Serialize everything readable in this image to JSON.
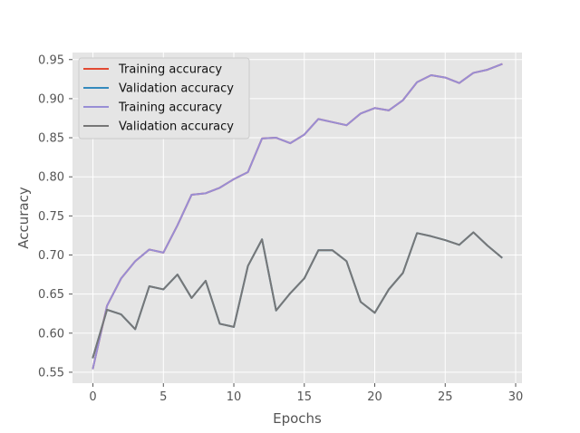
{
  "chart_data": {
    "type": "line",
    "title": "",
    "xlabel": "Epochs",
    "ylabel": "Accuracy",
    "xlim": [
      -1.45,
      30.45
    ],
    "ylim": [
      0.536,
      0.959
    ],
    "xticks": [
      0,
      5,
      10,
      15,
      20,
      25,
      30
    ],
    "yticks": [
      0.55,
      0.6,
      0.65,
      0.7,
      0.75,
      0.8,
      0.85,
      0.9,
      0.95
    ],
    "xtick_labels": [
      "0",
      "5",
      "10",
      "15",
      "20",
      "25",
      "30"
    ],
    "ytick_labels": [
      "0.55",
      "0.60",
      "0.65",
      "0.70",
      "0.75",
      "0.80",
      "0.85",
      "0.90",
      "0.95"
    ],
    "grid": true,
    "legend_position": "upper-left",
    "x": [
      0,
      1,
      2,
      3,
      4,
      5,
      6,
      7,
      8,
      9,
      10,
      11,
      12,
      13,
      14,
      15,
      16,
      17,
      18,
      19,
      20,
      21,
      22,
      23,
      24,
      25,
      26,
      27,
      28,
      29
    ],
    "series": [
      {
        "name": "Training accuracy",
        "color": "#e24a33",
        "values": [
          0.555,
          0.635,
          0.67,
          0.692,
          0.707,
          0.703,
          0.738,
          0.777,
          0.779,
          0.786,
          0.797,
          0.806,
          0.849,
          0.85,
          0.843,
          0.854,
          0.874,
          0.87,
          0.866,
          0.881,
          0.888,
          0.885,
          0.898,
          0.921,
          0.93,
          0.927,
          0.92,
          0.933,
          0.937,
          0.944
        ]
      },
      {
        "name": "Validation accuracy",
        "color": "#348abd",
        "values": [
          0.569,
          0.63,
          0.624,
          0.605,
          0.66,
          0.656,
          0.675,
          0.645,
          0.667,
          0.612,
          0.608,
          0.686,
          0.72,
          0.629,
          0.651,
          0.67,
          0.706,
          0.706,
          0.692,
          0.64,
          0.626,
          0.656,
          0.677,
          0.728,
          0.724,
          0.719,
          0.713,
          0.729,
          0.712,
          0.697
        ]
      },
      {
        "name": "Training accuracy",
        "color": "#988ed5",
        "values": [
          0.555,
          0.635,
          0.67,
          0.692,
          0.707,
          0.703,
          0.738,
          0.777,
          0.779,
          0.786,
          0.797,
          0.806,
          0.849,
          0.85,
          0.843,
          0.854,
          0.874,
          0.87,
          0.866,
          0.881,
          0.888,
          0.885,
          0.898,
          0.921,
          0.93,
          0.927,
          0.92,
          0.933,
          0.937,
          0.944
        ]
      },
      {
        "name": "Validation accuracy",
        "color": "#777777",
        "values": [
          0.569,
          0.63,
          0.624,
          0.605,
          0.66,
          0.656,
          0.675,
          0.645,
          0.667,
          0.612,
          0.608,
          0.686,
          0.72,
          0.629,
          0.651,
          0.67,
          0.706,
          0.706,
          0.692,
          0.64,
          0.626,
          0.656,
          0.677,
          0.728,
          0.724,
          0.719,
          0.713,
          0.729,
          0.712,
          0.697
        ]
      }
    ]
  }
}
